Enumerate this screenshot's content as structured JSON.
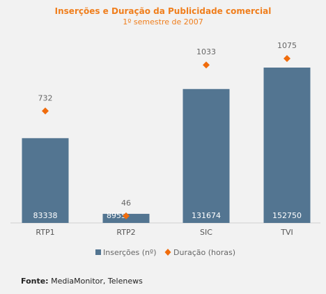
{
  "chart_data": {
    "type": "bar",
    "title": "Inserções e Duração da Publicidade comercial",
    "subtitle": "1º semestre de 2007",
    "categories": [
      "RTP1",
      "RTP2",
      "SIC",
      "TVI"
    ],
    "series": [
      {
        "name": "Inserções (nº)",
        "kind": "bar",
        "values": [
          83338,
          8955,
          131674,
          152750
        ],
        "value_labels": [
          "83338",
          "8955",
          "131674",
          "152750"
        ],
        "color": "#537591"
      },
      {
        "name": "Duração (horas)",
        "kind": "marker",
        "marker": "diamond",
        "values": [
          732,
          46,
          1033,
          1075
        ],
        "value_labels": [
          "732",
          "46",
          "1033",
          "1075"
        ],
        "color": "#f06c0c"
      }
    ],
    "legend_position": "bottom",
    "grid": false
  },
  "source": {
    "label": "Fonte:",
    "text": " MediaMonitor, Telenews"
  },
  "colors": {
    "background": "#f2f2f2",
    "title": "#f07e1c",
    "bar": "#537591",
    "marker": "#f06c0c"
  }
}
